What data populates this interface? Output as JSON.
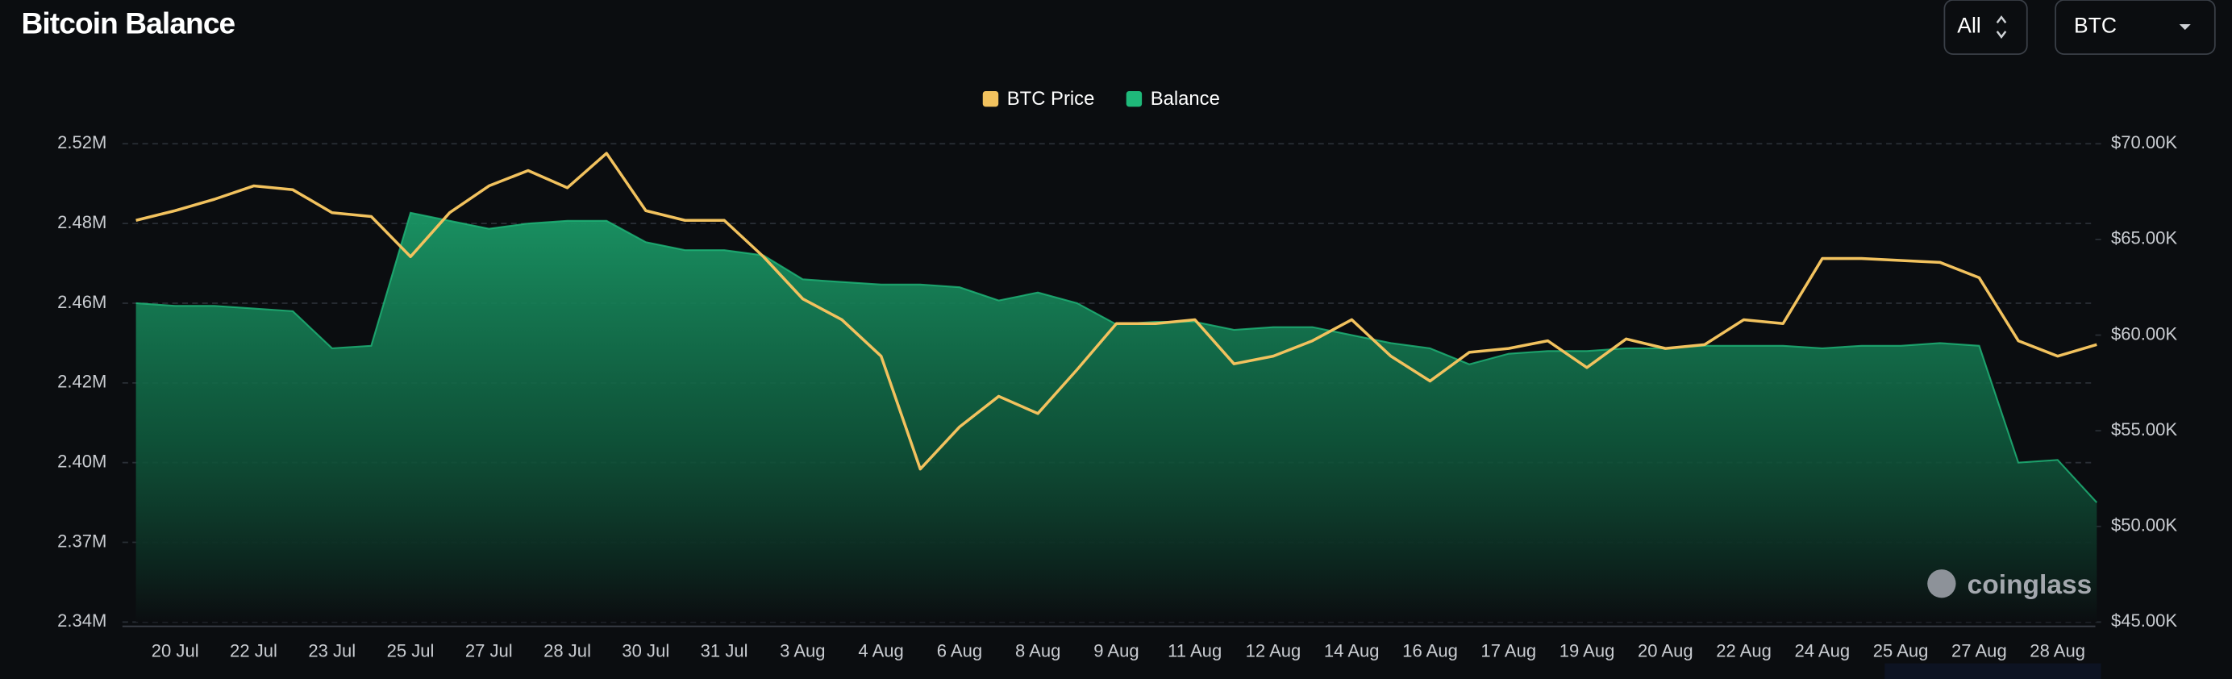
{
  "header": {
    "title": "Bitcoin Balance"
  },
  "controls": {
    "range": "All",
    "asset": "BTC"
  },
  "watermark": "coinglass",
  "chart_data": {
    "type": "line",
    "categories": [
      null,
      "20 Jul",
      null,
      "22 Jul",
      null,
      "23 Jul",
      null,
      "25 Jul",
      null,
      "27 Jul",
      null,
      "28 Jul",
      null,
      "30 Jul",
      null,
      "31 Jul",
      null,
      "3 Aug",
      null,
      "4 Aug",
      null,
      "6 Aug",
      null,
      "8 Aug",
      null,
      "9 Aug",
      null,
      "11 Aug",
      null,
      "12 Aug",
      null,
      "14 Aug",
      null,
      "16 Aug",
      null,
      "17 Aug",
      null,
      "19 Aug",
      null,
      "20 Aug",
      null,
      "22 Aug",
      null,
      "24 Aug",
      null,
      "25 Aug",
      null,
      "27 Aug",
      null,
      "28 Aug",
      null
    ],
    "series": [
      {
        "name": "BTC Price",
        "color": "#f2c25e",
        "axis": "y2",
        "values": [
          66000,
          66500,
          67100,
          67800,
          67600,
          66400,
          66200,
          64100,
          66400,
          67800,
          68600,
          67700,
          69500,
          66500,
          66000,
          66000,
          64100,
          61900,
          60800,
          58900,
          53000,
          55200,
          56800,
          55900,
          58200,
          60600,
          60600,
          60800,
          58500,
          58900,
          59700,
          60800,
          58900,
          57600,
          59100,
          59300,
          59700,
          58300,
          59800,
          59300,
          59500,
          60800,
          60600,
          64000,
          64000,
          63900,
          63800,
          63000,
          59700,
          58900,
          59500
        ]
      },
      {
        "name": "Balance",
        "color": "#1fb97a",
        "values": [
          2455000,
          2454000,
          2454000,
          2453000,
          2452000,
          2438000,
          2439000,
          2489000,
          2486000,
          2483000,
          2485000,
          2486000,
          2486000,
          2478000,
          2475000,
          2475000,
          2473000,
          2464000,
          2463000,
          2462000,
          2462000,
          2461000,
          2456000,
          2459000,
          2455000,
          2447000,
          2448000,
          2448000,
          2445000,
          2446000,
          2446000,
          2443000,
          2440000,
          2438000,
          2432000,
          2436000,
          2437000,
          2437000,
          2438000,
          2438000,
          2439000,
          2439000,
          2439000,
          2438000,
          2439000,
          2439000,
          2440000,
          2439000,
          2395000,
          2396000,
          2380000
        ]
      }
    ],
    "ylim": [
      2335000,
      2515000
    ],
    "yticks": [
      {
        "value": 2335000,
        "label": "2.34M"
      },
      {
        "value": 2365000,
        "label": "2.37M"
      },
      {
        "value": 2395000,
        "label": "2.40M"
      },
      {
        "value": 2425000,
        "label": "2.42M"
      },
      {
        "value": 2455000,
        "label": "2.46M"
      },
      {
        "value": 2485000,
        "label": "2.48M"
      },
      {
        "value": 2515000,
        "label": "2.52M"
      }
    ],
    "y2lim": [
      45000,
      70000
    ],
    "y2ticks": [
      {
        "value": 45000,
        "label": "$45.00K"
      },
      {
        "value": 50000,
        "label": "$50.00K"
      },
      {
        "value": 55000,
        "label": "$55.00K"
      },
      {
        "value": 60000,
        "label": "$60.00K"
      },
      {
        "value": 65000,
        "label": "$65.00K"
      },
      {
        "value": 70000,
        "label": "$70.00K"
      }
    ],
    "grid": true,
    "legend": "top"
  }
}
